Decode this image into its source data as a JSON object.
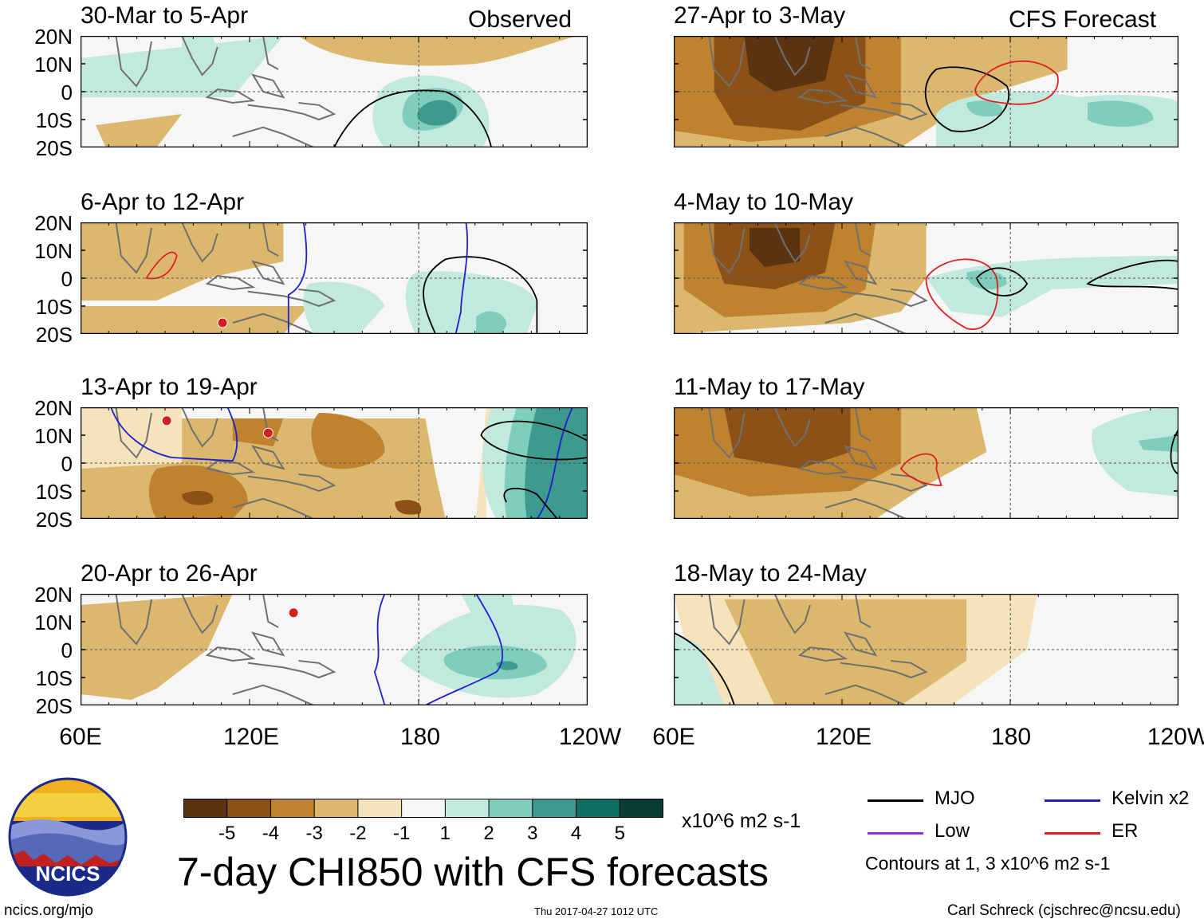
{
  "chart_data": {
    "type": "map-panels",
    "title": "7-day CHI850 with CFS forecasts",
    "units": "x10^6 m2 s-1",
    "observed_label": "Observed",
    "forecast_label": "CFS Forecast",
    "lat_ticks": [
      "20N",
      "10N",
      "0",
      "10S",
      "20S"
    ],
    "lon_ticks": [
      "60E",
      "120E",
      "180",
      "120W"
    ],
    "colorbar": {
      "levels": [
        "-5",
        "-4",
        "-3",
        "-2",
        "-1",
        "1",
        "2",
        "3",
        "4",
        "5"
      ],
      "colors": [
        "#5a3410",
        "#8c5116",
        "#bf822f",
        "#dbb86e",
        "#f5e3bc",
        "#f6f6f6",
        "#c2e9de",
        "#7fcdbb",
        "#3c9a8e",
        "#0e6e62",
        "#083d33"
      ]
    },
    "panels": [
      {
        "id": "obs-1",
        "label": "30-Mar to 5-Apr",
        "source": "Observed"
      },
      {
        "id": "obs-2",
        "label": "6-Apr to 12-Apr",
        "source": "Observed"
      },
      {
        "id": "obs-3",
        "label": "13-Apr to 19-Apr",
        "source": "Observed"
      },
      {
        "id": "obs-4",
        "label": "20-Apr to 26-Apr",
        "source": "Observed"
      },
      {
        "id": "fc-1",
        "label": "27-Apr to 3-May",
        "source": "CFS Forecast"
      },
      {
        "id": "fc-2",
        "label": "4-May to 10-May",
        "source": "CFS Forecast"
      },
      {
        "id": "fc-3",
        "label": "11-May to 17-May",
        "source": "CFS Forecast"
      },
      {
        "id": "fc-4",
        "label": "18-May to 24-May",
        "source": "CFS Forecast"
      }
    ],
    "legend": [
      {
        "name": "MJO",
        "color": "#000000"
      },
      {
        "name": "Kelvin x2",
        "color": "#1f1fd0"
      },
      {
        "name": "Low",
        "color": "#9b30d0"
      },
      {
        "name": "ER",
        "color": "#e02020"
      }
    ],
    "contour_note": "Contours at 1, 3 x10^6 m2 s-1"
  },
  "footer": {
    "logo_text": "NCICS",
    "url": "ncics.org/mjo",
    "timestamp": "Thu 2017-04-27 1012 UTC",
    "author": "Carl Schreck (cjschrec@ncsu.edu)"
  }
}
